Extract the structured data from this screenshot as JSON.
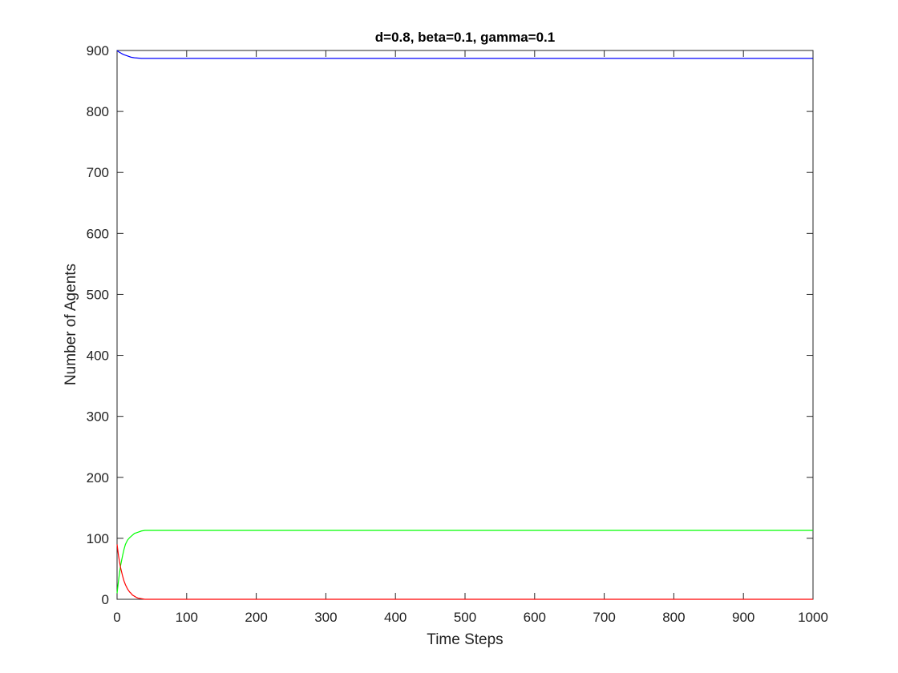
{
  "chart_data": {
    "type": "line",
    "title": "d=0.8, beta=0.1, gamma=0.1",
    "xlabel": "Time Steps",
    "ylabel": "Number of Agents",
    "xlim": [
      0,
      1000
    ],
    "ylim": [
      0,
      900
    ],
    "xticks": [
      "0",
      "100",
      "200",
      "300",
      "400",
      "500",
      "600",
      "700",
      "800",
      "900",
      "1000"
    ],
    "yticks": [
      "0",
      "100",
      "200",
      "300",
      "400",
      "500",
      "600",
      "700",
      "800",
      "900"
    ],
    "grid": false,
    "legend": "none",
    "series": [
      {
        "color": "#0000ff",
        "x": [
          0,
          2,
          5,
          8,
          10,
          15,
          20,
          25,
          30,
          35,
          40,
          50,
          100,
          1000
        ],
        "y": [
          900,
          898,
          896,
          894,
          893,
          891,
          889,
          888,
          887.5,
          887,
          887,
          887,
          887,
          887
        ]
      },
      {
        "color": "#00ff00",
        "x": [
          0,
          2,
          5,
          8,
          10,
          12,
          15,
          18,
          20,
          22,
          25,
          30,
          35,
          40,
          50,
          100,
          1000
        ],
        "y": [
          10,
          30,
          55,
          72,
          82,
          90,
          97,
          101,
          103,
          105,
          108,
          110,
          112,
          113,
          113,
          113,
          113
        ]
      },
      {
        "color": "#ff0000",
        "x": [
          0,
          2,
          5,
          8,
          10,
          12,
          15,
          18,
          20,
          22,
          25,
          28,
          30,
          35,
          40,
          1000
        ],
        "y": [
          90,
          72,
          52,
          38,
          30,
          24,
          17,
          12,
          10,
          7,
          5,
          3,
          2,
          1,
          0,
          0
        ]
      }
    ]
  }
}
